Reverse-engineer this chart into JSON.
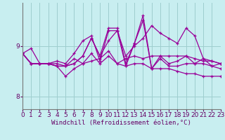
{
  "title": "",
  "xlabel": "Windchill (Refroidissement éolien,°C)",
  "background_color": "#c8eef0",
  "grid_color": "#9ecece",
  "line_color": "#990099",
  "hours": [
    0,
    1,
    2,
    3,
    4,
    5,
    6,
    7,
    8,
    9,
    10,
    11,
    12,
    13,
    14,
    15,
    16,
    17,
    18,
    19,
    20,
    21,
    22,
    23
  ],
  "lines": [
    [
      8.85,
      8.95,
      8.65,
      8.65,
      8.7,
      8.65,
      8.85,
      9.1,
      9.2,
      8.7,
      9.3,
      9.3,
      8.8,
      9.0,
      9.15,
      9.4,
      9.25,
      9.15,
      9.05,
      9.35,
      9.2,
      8.75,
      8.7,
      8.65
    ],
    [
      8.85,
      8.65,
      8.65,
      8.65,
      8.65,
      8.6,
      8.75,
      8.65,
      8.7,
      8.75,
      8.9,
      8.65,
      8.75,
      8.8,
      8.75,
      8.8,
      8.8,
      8.8,
      8.8,
      8.8,
      8.75,
      8.7,
      8.7,
      8.65
    ],
    [
      8.85,
      8.65,
      8.65,
      8.65,
      8.6,
      8.6,
      8.65,
      8.8,
      9.15,
      8.8,
      9.35,
      9.35,
      8.65,
      9.05,
      9.6,
      8.55,
      8.8,
      8.65,
      8.7,
      8.8,
      8.65,
      8.75,
      8.6,
      8.65
    ],
    [
      8.85,
      8.65,
      8.65,
      8.65,
      8.6,
      8.6,
      8.65,
      8.8,
      9.15,
      8.8,
      9.1,
      9.3,
      8.6,
      9.05,
      9.5,
      8.55,
      8.75,
      8.6,
      8.6,
      8.65,
      8.65,
      8.65,
      8.6,
      8.55
    ],
    [
      8.85,
      8.65,
      8.65,
      8.65,
      8.6,
      8.4,
      8.55,
      8.65,
      8.85,
      8.65,
      8.8,
      8.65,
      8.6,
      8.65,
      8.65,
      8.55,
      8.55,
      8.55,
      8.5,
      8.45,
      8.45,
      8.4,
      8.4,
      8.4
    ]
  ],
  "yticks": [
    8,
    9
  ],
  "ylim": [
    7.75,
    9.85
  ],
  "xlim": [
    0,
    23
  ],
  "tick_fontsize": 6.5,
  "xlabel_fontsize": 6.5
}
